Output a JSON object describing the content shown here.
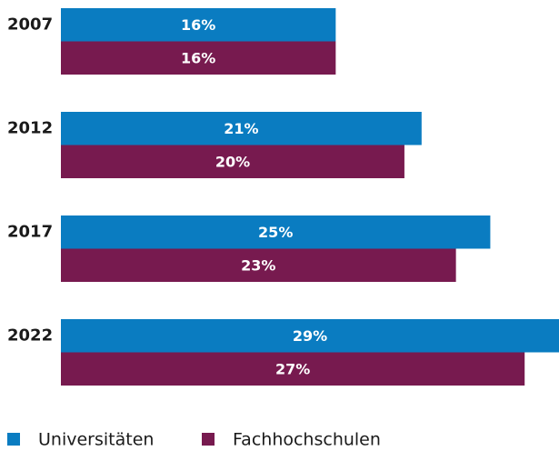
{
  "chart_data": {
    "type": "hbar",
    "categories": [
      "2007",
      "2012",
      "2017",
      "2022"
    ],
    "series": [
      {
        "name": "Universitäten",
        "color": "#0a7cc1",
        "values": [
          16,
          21,
          25,
          29
        ],
        "value_labels": [
          "16%",
          "21%",
          "25%",
          "29%"
        ]
      },
      {
        "name": "Fachhochschulen",
        "color": "#771a4f",
        "values": [
          16,
          20,
          23,
          27
        ],
        "value_labels": [
          "16%",
          "20%",
          "23%",
          "27%"
        ]
      }
    ],
    "legend": "bottom-left"
  }
}
